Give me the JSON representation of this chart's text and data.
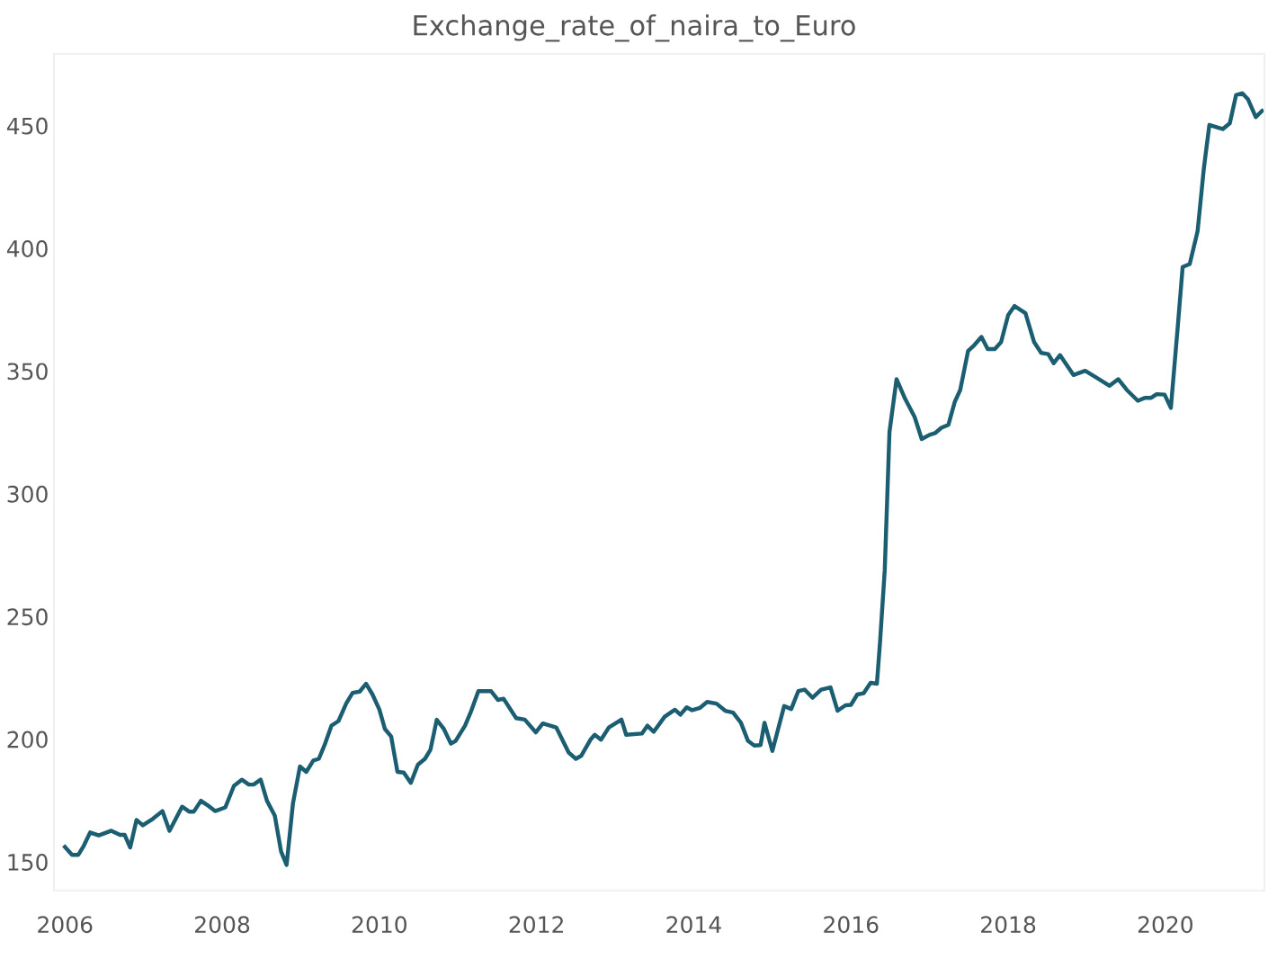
{
  "chart_data": {
    "type": "line",
    "title": "Exchange_rate_of_naira_to_Euro",
    "x": [
      2006.0,
      2006.09,
      2006.17,
      2006.24,
      2006.32,
      2006.43,
      2006.59,
      2006.7,
      2006.76,
      2006.83,
      2006.91,
      2006.99,
      2007.12,
      2007.24,
      2007.33,
      2007.43,
      2007.49,
      2007.58,
      2007.64,
      2007.73,
      2007.81,
      2007.91,
      2008.04,
      2008.15,
      2008.25,
      2008.34,
      2008.4,
      2008.49,
      2008.57,
      2008.67,
      2008.75,
      2008.82,
      2008.9,
      2008.99,
      2009.07,
      2009.16,
      2009.23,
      2009.31,
      2009.39,
      2009.48,
      2009.58,
      2009.66,
      2009.75,
      2009.83,
      2009.91,
      2010.0,
      2010.07,
      2010.15,
      2010.23,
      2010.31,
      2010.4,
      2010.49,
      2010.58,
      2010.65,
      2010.73,
      2010.82,
      2010.91,
      2010.97,
      2011.09,
      2011.16,
      2011.26,
      2011.42,
      2011.51,
      2011.58,
      2011.74,
      2011.85,
      2011.99,
      2012.08,
      2012.25,
      2012.41,
      2012.5,
      2012.57,
      2012.69,
      2012.74,
      2012.82,
      2012.92,
      2013.08,
      2013.14,
      2013.34,
      2013.41,
      2013.49,
      2013.63,
      2013.76,
      2013.83,
      2013.91,
      2013.98,
      2014.08,
      2014.17,
      2014.29,
      2014.4,
      2014.5,
      2014.6,
      2014.69,
      2014.77,
      2014.85,
      2014.9,
      2015.0,
      2015.15,
      2015.24,
      2015.33,
      2015.41,
      2015.51,
      2015.62,
      2015.74,
      2015.83,
      2015.93,
      2016.0,
      2016.08,
      2016.16,
      2016.25,
      2016.33,
      2016.37,
      2016.43,
      2016.49,
      2016.58,
      2016.69,
      2016.81,
      2016.9,
      2017.0,
      2017.07,
      2017.15,
      2017.24,
      2017.32,
      2017.39,
      2017.49,
      2017.57,
      2017.66,
      2017.74,
      2017.83,
      2017.91,
      2018.0,
      2018.08,
      2018.22,
      2018.33,
      2018.42,
      2018.51,
      2018.58,
      2018.66,
      2018.83,
      2018.98,
      2019.13,
      2019.29,
      2019.4,
      2019.51,
      2019.65,
      2019.74,
      2019.82,
      2019.89,
      2019.99,
      2020.07,
      2020.16,
      2020.22,
      2020.31,
      2020.41,
      2020.49,
      2020.56,
      2020.66,
      2020.73,
      2020.82,
      2020.9,
      2020.98,
      2021.05,
      2021.15,
      2021.23
    ],
    "series": [
      {
        "color": "#1b5e72",
        "values": [
          156.1,
          152.9,
          152.9,
          156.6,
          162,
          160.8,
          162.7,
          161,
          161,
          155.9,
          167.1,
          164.9,
          167.6,
          170.7,
          162.7,
          168.8,
          172.5,
          170.5,
          170.5,
          174.9,
          173.2,
          170.7,
          172.2,
          181,
          183.5,
          181.5,
          181.5,
          183.5,
          174.9,
          168.8,
          154.2,
          148.8,
          173.7,
          188.9,
          186.7,
          191.3,
          192,
          198.2,
          205.5,
          207.4,
          214.7,
          218.9,
          219.4,
          222.6,
          218.4,
          212.1,
          204.2,
          201.1,
          186.7,
          186.4,
          182.2,
          189.6,
          192,
          195.7,
          207.9,
          204.2,
          198.2,
          199.3,
          205.5,
          210.8,
          219.6,
          219.6,
          216,
          216.5,
          208.6,
          208,
          202.8,
          206.4,
          204.8,
          194.5,
          192,
          193.3,
          200,
          201.8,
          199.8,
          204.8,
          208,
          201.8,
          202.3,
          205.5,
          203,
          209.2,
          212,
          210,
          213,
          211.8,
          212.8,
          215.2,
          214.5,
          211.6,
          210.8,
          206.7,
          199.3,
          197.4,
          197.6,
          206.7,
          195.2,
          213.5,
          212.3,
          219.6,
          220.2,
          216.9,
          220.2,
          221.1,
          211.6,
          213.8,
          214,
          218.2,
          218.7,
          223,
          222.6,
          239.6,
          269,
          325.2,
          346.7,
          338.6,
          331.3,
          322.3,
          324,
          324.7,
          326.9,
          328.1,
          337.4,
          342.3,
          358.2,
          360.6,
          363.9,
          359,
          359,
          361.8,
          372.8,
          376.5,
          373.6,
          361.8,
          357.4,
          356.9,
          353.2,
          356.5,
          348.4,
          350.1,
          347.2,
          344,
          346.7,
          342.3,
          337.9,
          339.1,
          339.1,
          340.6,
          340.4,
          335,
          369,
          392.4,
          393.6,
          407,
          432.7,
          450.3,
          449.3,
          448.6,
          451,
          462.5,
          463.2,
          460.8,
          453.5,
          456
        ]
      }
    ],
    "xlim": [
      2005.86,
      2021.26
    ],
    "ylim": [
      138.3,
      479.2
    ],
    "xticks": [
      2006,
      2008,
      2010,
      2012,
      2014,
      2016,
      2018,
      2020
    ],
    "yticks": [
      150,
      200,
      250,
      300,
      350,
      400,
      450
    ],
    "grid": false,
    "legend": false,
    "marker": "none",
    "line_style": "solid"
  }
}
